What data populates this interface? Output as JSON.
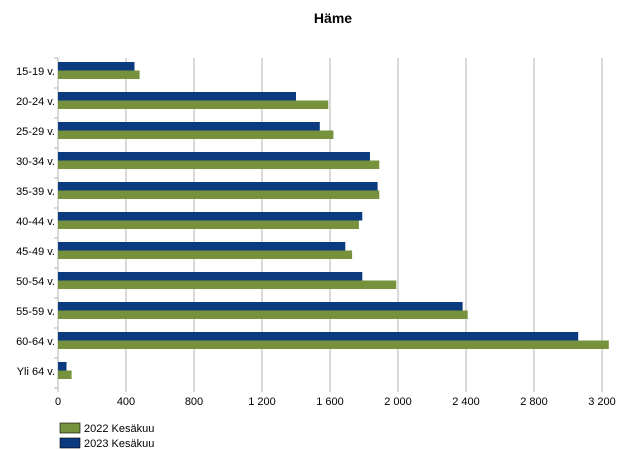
{
  "chart_data": {
    "type": "bar",
    "orientation": "horizontal",
    "title": "Häme",
    "categories": [
      "15-19 v.",
      "20-24 v.",
      "25-29 v.",
      "30-34 v.",
      "35-39 v.",
      "40-44 v.",
      "45-49 v.",
      "50-54 v.",
      "55-59 v.",
      "60-64 v.",
      "Yli 64 v."
    ],
    "series": [
      {
        "name": "2023 Kesäkuu",
        "color": "#0b3a7e",
        "values": [
          450,
          1400,
          1540,
          1835,
          1880,
          1790,
          1690,
          1790,
          2380,
          3060,
          50
        ]
      },
      {
        "name": "2022 Kesäkuu",
        "color": "#76923c",
        "values": [
          480,
          1590,
          1620,
          1890,
          1890,
          1770,
          1730,
          1990,
          2410,
          3240,
          80
        ]
      }
    ],
    "xlim": [
      0,
      3200
    ],
    "ticks": [
      0,
      400,
      800,
      1200,
      1600,
      2000,
      2400,
      2800,
      3200
    ],
    "tick_labels": [
      "0",
      "400",
      "800",
      "1 200",
      "1 600",
      "2 000",
      "2 400",
      "2 800",
      "3 200"
    ],
    "grid": true,
    "legend_placement": "bottom-left",
    "legend": [
      {
        "name": "2022 Kesäkuu",
        "color": "#76923c"
      },
      {
        "name": "2023 Kesäkuu",
        "color": "#0b3a7e"
      }
    ]
  }
}
